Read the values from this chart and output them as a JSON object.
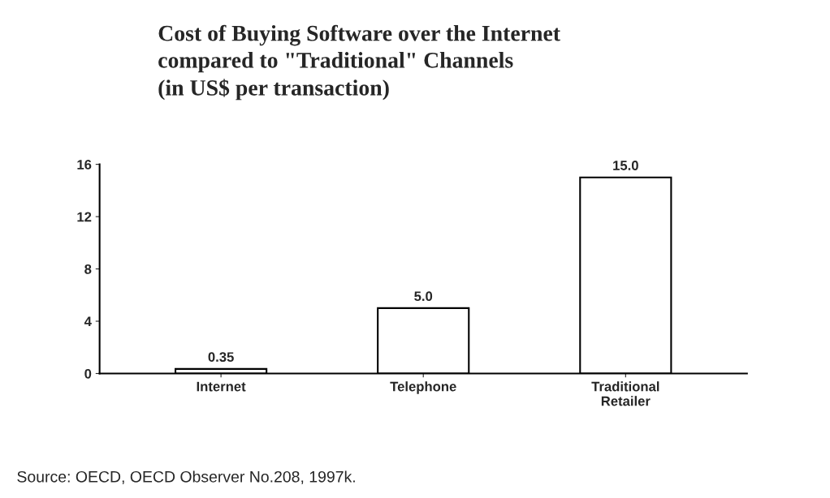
{
  "chart_data": {
    "type": "bar",
    "title": "Cost of Buying Software over the Internet\ncompared to \"Traditional\" Channels\n(in US$ per transaction)",
    "categories": [
      "Internet",
      "Telephone",
      "Traditional\nRetailer"
    ],
    "values": [
      0.35,
      5.0,
      15.0
    ],
    "value_labels": [
      "0.35",
      "5.0",
      "15.0"
    ],
    "color": "#ffffff",
    "ylim": [
      0,
      16
    ],
    "yticks": [
      0,
      4,
      8,
      12,
      16
    ],
    "grid": false,
    "legend": false,
    "annotations": [
      "Source: OECD, OECD Observer No.208, 1997k."
    ]
  }
}
